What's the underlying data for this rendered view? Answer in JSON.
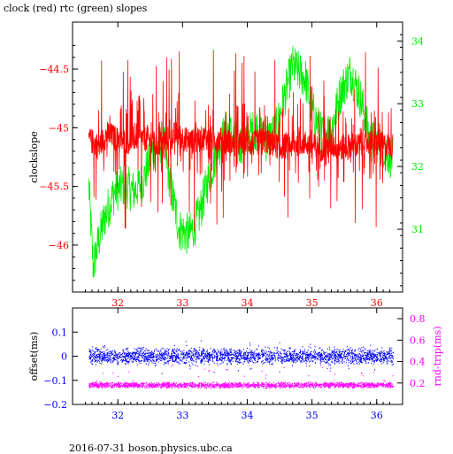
{
  "title": "clock (red) rtc (green) slopes",
  "footer": "2016-07-31 boson.physics.ubc.ca",
  "colors": {
    "red": "#ff0000",
    "green": "#00ee00",
    "blue": "#0000ff",
    "magenta": "#ff00ff",
    "black": "#000000"
  },
  "chart_data": [
    {
      "type": "line",
      "title": "clock (red) rtc (green) slopes",
      "xlabel": "",
      "ylabel": "clockslope",
      "ylabel_right": "",
      "xlim": [
        31.3,
        36.4
      ],
      "ylim": [
        -46.4,
        -44.1
      ],
      "ylim_right": [
        30.0,
        34.3
      ],
      "x_ticks": [
        "32",
        "33",
        "34",
        "35",
        "36"
      ],
      "y_ticks_left": [
        "-44.5",
        "-45",
        "-45.5",
        "-46"
      ],
      "y_ticks_right": [
        "31",
        "32",
        "33",
        "34"
      ],
      "grid": false,
      "series": [
        {
          "axis": "left",
          "color": "#ff0000",
          "x": [
            31.55,
            31.7,
            31.85,
            32.0,
            32.15,
            32.3,
            32.45,
            32.6,
            32.75,
            32.9,
            33.05,
            33.2,
            33.35,
            33.5,
            33.65,
            33.8,
            33.95,
            34.1,
            34.25,
            34.4,
            34.55,
            34.7,
            34.85,
            35.0,
            35.15,
            35.3,
            35.45,
            35.6,
            35.75,
            35.9,
            36.05,
            36.25
          ],
          "values": [
            -45.1,
            -45.15,
            -45.05,
            -45.1,
            -45.12,
            -45.08,
            -45.1,
            -45.15,
            -45.1,
            -45.05,
            -45.1,
            -45.12,
            -45.08,
            -45.1,
            -45.1,
            -45.15,
            -45.12,
            -45.14,
            -45.1,
            -45.15,
            -45.16,
            -45.15,
            -45.12,
            -45.15,
            -45.18,
            -45.15,
            -45.17,
            -45.15,
            -45.15,
            -45.12,
            -45.15,
            -45.15
          ]
        },
        {
          "axis": "right",
          "color": "#00ee00",
          "x": [
            31.55,
            31.62,
            31.7,
            31.8,
            31.95,
            32.1,
            32.25,
            32.4,
            32.55,
            32.7,
            32.85,
            32.95,
            33.1,
            33.25,
            33.4,
            33.55,
            33.7,
            33.85,
            34.0,
            34.15,
            34.3,
            34.45,
            34.6,
            34.7,
            34.8,
            34.9,
            35.0,
            35.15,
            35.3,
            35.45,
            35.6,
            35.75,
            35.9,
            36.05,
            36.25
          ],
          "values": [
            31.7,
            30.4,
            30.8,
            31.2,
            31.6,
            31.7,
            31.6,
            31.8,
            32.3,
            32.4,
            31.5,
            31.0,
            30.9,
            31.2,
            31.8,
            32.3,
            32.6,
            32.3,
            32.5,
            32.6,
            32.4,
            32.6,
            33.2,
            33.6,
            33.5,
            33.4,
            32.9,
            32.5,
            32.6,
            33.2,
            33.5,
            33.1,
            32.4,
            32.4,
            32.1
          ]
        }
      ]
    },
    {
      "type": "scatter",
      "title": "",
      "xlabel": "",
      "ylabel": "offset(ms)",
      "ylabel_right": "rnd-trip(ms)",
      "xlim": [
        31.3,
        36.4
      ],
      "ylim": [
        -0.2,
        0.2
      ],
      "ylim_right": [
        0.0,
        0.9
      ],
      "x_ticks": [
        "32",
        "33",
        "34",
        "35",
        "36"
      ],
      "y_ticks_left": [
        "0.1",
        "0",
        "-0.1",
        "-0.2"
      ],
      "y_ticks_right": [
        "0.8",
        "0.6",
        "0.4",
        "0.2"
      ],
      "grid": false,
      "series": [
        {
          "axis": "left",
          "color": "#0000ff",
          "x_range": [
            31.55,
            36.25
          ],
          "mean": 0.0,
          "spread": 0.03
        },
        {
          "axis": "right",
          "color": "#ff00ff",
          "x_range": [
            31.55,
            36.25
          ],
          "mean": 0.18,
          "spread": 0.03
        }
      ]
    }
  ]
}
